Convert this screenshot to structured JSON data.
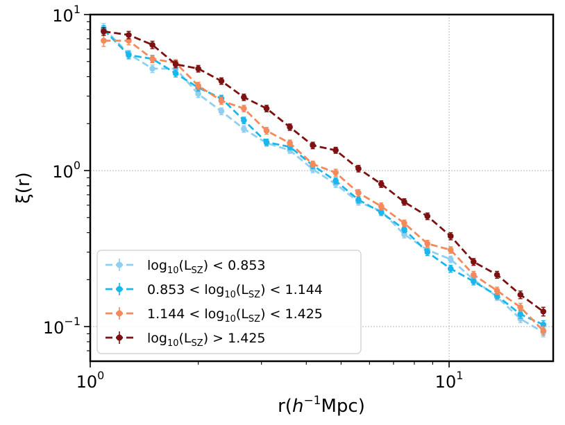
{
  "chart_data": {
    "type": "line",
    "scale": {
      "x": "log",
      "y": "log"
    },
    "xlim": [
      1.0,
      19.5
    ],
    "ylim": [
      0.06,
      10
    ],
    "xlabel": {
      "prefix": "r(",
      "italic": "h",
      "sup": "−1",
      "suffix": "Mpc)"
    },
    "ylabel": "ξ(r)",
    "x_ticks": [
      {
        "value": 1,
        "base": "10",
        "exp": "0"
      },
      {
        "value": 10,
        "base": "10",
        "exp": "1"
      }
    ],
    "y_ticks": [
      {
        "value": 0.1,
        "base": "10",
        "exp": "−1"
      },
      {
        "value": 1,
        "base": "10",
        "exp": "0"
      },
      {
        "value": 10,
        "base": "10",
        "exp": "1"
      }
    ],
    "grid": true,
    "legend_position": "lower-left",
    "x": [
      1.09,
      1.28,
      1.49,
      1.73,
      2.0,
      2.32,
      2.68,
      3.1,
      3.6,
      4.17,
      4.83,
      5.59,
      6.47,
      7.5,
      8.7,
      10.1,
      11.7,
      13.6,
      15.8,
      18.3
    ],
    "series": [
      {
        "name": "log10(LSZ) < 0.853",
        "legend": {
          "pre": "log",
          "sub1": "10",
          "mid": "(L",
          "sub2": "SZ",
          "post": ") < 0.853"
        },
        "color": "#8fcfef",
        "values": [
          8.2,
          5.6,
          4.5,
          4.5,
          3.1,
          2.4,
          1.85,
          1.5,
          1.35,
          1.02,
          0.82,
          0.63,
          0.55,
          0.39,
          0.31,
          0.27,
          0.2,
          0.155,
          0.112,
          0.092
        ],
        "errors": [
          0.55,
          0.3,
          0.25,
          0.25,
          0.16,
          0.12,
          0.09,
          0.07,
          0.06,
          0.05,
          0.04,
          0.03,
          0.025,
          0.02,
          0.015,
          0.013,
          0.01,
          0.008,
          0.006,
          0.006
        ]
      },
      {
        "name": "0.853 < log10(LSZ) < 1.144",
        "legend": {
          "pre": "0.853 < log",
          "sub1": "10",
          "mid": "(L",
          "sub2": "SZ",
          "post": ") < 1.144"
        },
        "color": "#1bb6ea",
        "values": [
          8.0,
          5.5,
          5.2,
          4.2,
          3.4,
          2.9,
          2.1,
          1.52,
          1.42,
          1.08,
          0.86,
          0.65,
          0.54,
          0.42,
          0.3,
          0.235,
          0.195,
          0.158,
          0.12,
          0.103
        ],
        "errors": [
          0.5,
          0.3,
          0.25,
          0.22,
          0.17,
          0.14,
          0.1,
          0.07,
          0.06,
          0.05,
          0.04,
          0.03,
          0.025,
          0.02,
          0.015,
          0.012,
          0.01,
          0.008,
          0.007,
          0.006
        ]
      },
      {
        "name": "1.144 < log10(LSZ) < 1.425",
        "legend": {
          "pre": "1.144 < log",
          "sub1": "10",
          "mid": "(L",
          "sub2": "SZ",
          "post": ") < 1.425"
        },
        "color": "#f4895b",
        "values": [
          6.8,
          6.8,
          5.2,
          4.9,
          3.5,
          2.8,
          2.5,
          1.8,
          1.5,
          1.1,
          0.97,
          0.72,
          0.59,
          0.46,
          0.34,
          0.31,
          0.215,
          0.17,
          0.133,
          0.094
        ],
        "errors": [
          0.55,
          0.4,
          0.28,
          0.25,
          0.18,
          0.14,
          0.12,
          0.09,
          0.07,
          0.05,
          0.05,
          0.035,
          0.03,
          0.022,
          0.017,
          0.015,
          0.011,
          0.009,
          0.008,
          0.006
        ]
      },
      {
        "name": "log10(LSZ) > 1.425",
        "legend": {
          "pre": "log",
          "sub1": "10",
          "mid": "(L",
          "sub2": "SZ",
          "post": ") > 1.425"
        },
        "color": "#7d1010",
        "values": [
          7.8,
          7.4,
          6.4,
          4.8,
          4.5,
          3.75,
          2.95,
          2.5,
          1.9,
          1.45,
          1.35,
          1.03,
          0.82,
          0.63,
          0.51,
          0.38,
          0.26,
          0.215,
          0.16,
          0.125
        ],
        "errors": [
          0.45,
          0.4,
          0.35,
          0.25,
          0.22,
          0.18,
          0.14,
          0.12,
          0.09,
          0.07,
          0.06,
          0.05,
          0.04,
          0.03,
          0.025,
          0.02,
          0.013,
          0.011,
          0.009,
          0.008
        ]
      }
    ]
  }
}
